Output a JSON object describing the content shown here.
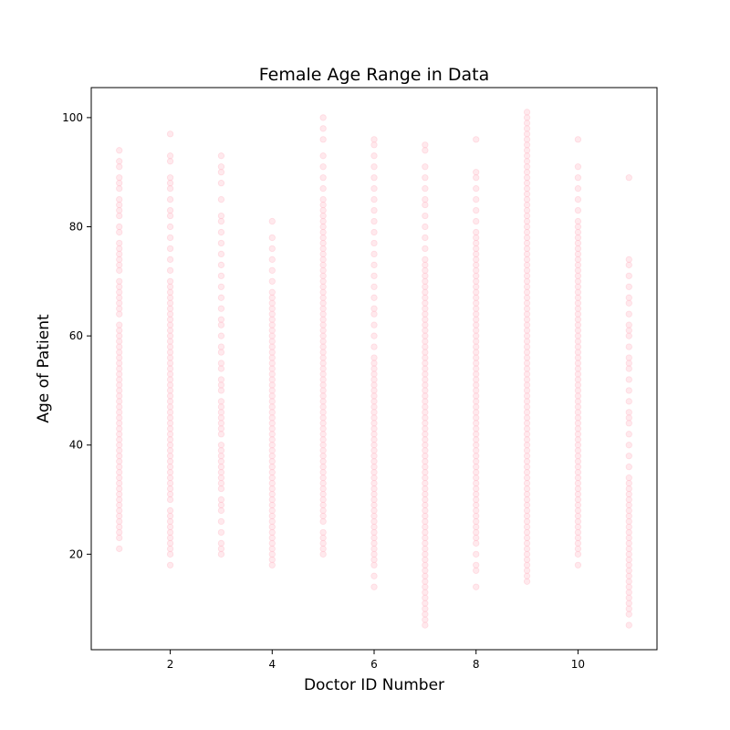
{
  "chart_data": {
    "type": "scatter",
    "title": "Female Age Range in Data",
    "xlabel": "Doctor ID Number",
    "ylabel": "Age of Patient",
    "xlim": [
      0.45,
      11.55
    ],
    "ylim": [
      2.5,
      105.5
    ],
    "xticks": [
      2,
      4,
      6,
      8,
      10
    ],
    "yticks": [
      20,
      40,
      60,
      80,
      100
    ],
    "grid": false,
    "legend": false,
    "marker_color": "#ffc0cb",
    "marker_opacity": 0.35,
    "series": [
      {
        "points_by_doctor": [
          {
            "x": 1,
            "ages": [
              21,
              23,
              24,
              25,
              26,
              27,
              28,
              29,
              30,
              31,
              32,
              33,
              34,
              35,
              36,
              37,
              38,
              39,
              40,
              41,
              42,
              43,
              44,
              45,
              46,
              47,
              48,
              49,
              50,
              51,
              52,
              53,
              54,
              55,
              56,
              57,
              58,
              59,
              60,
              61,
              62,
              64,
              65,
              66,
              67,
              68,
              69,
              70,
              72,
              73,
              74,
              75,
              76,
              77,
              79,
              80,
              82,
              83,
              84,
              85,
              87,
              88,
              89,
              91,
              92,
              94
            ]
          },
          {
            "x": 2,
            "ages": [
              18,
              20,
              21,
              22,
              23,
              24,
              25,
              26,
              27,
              28,
              30,
              31,
              32,
              33,
              34,
              35,
              36,
              37,
              38,
              39,
              40,
              41,
              42,
              43,
              44,
              45,
              46,
              47,
              48,
              49,
              50,
              51,
              52,
              53,
              54,
              55,
              56,
              57,
              58,
              59,
              60,
              61,
              62,
              63,
              64,
              65,
              66,
              67,
              68,
              69,
              70,
              72,
              74,
              76,
              78,
              80,
              82,
              83,
              85,
              87,
              88,
              89,
              92,
              93,
              97
            ]
          },
          {
            "x": 3,
            "ages": [
              20,
              21,
              22,
              24,
              26,
              28,
              29,
              30,
              32,
              33,
              34,
              35,
              36,
              37,
              38,
              39,
              40,
              42,
              43,
              44,
              45,
              46,
              47,
              48,
              50,
              51,
              52,
              54,
              55,
              57,
              58,
              60,
              62,
              63,
              65,
              67,
              69,
              71,
              73,
              75,
              77,
              79,
              81,
              82,
              85,
              88,
              90,
              91,
              93
            ]
          },
          {
            "x": 4,
            "ages": [
              18,
              19,
              20,
              21,
              22,
              23,
              24,
              25,
              26,
              27,
              28,
              29,
              30,
              31,
              32,
              33,
              34,
              35,
              36,
              37,
              38,
              39,
              40,
              41,
              42,
              43,
              44,
              45,
              46,
              47,
              48,
              49,
              50,
              51,
              52,
              53,
              54,
              55,
              56,
              57,
              58,
              59,
              60,
              61,
              62,
              63,
              64,
              65,
              66,
              67,
              68,
              70,
              72,
              74,
              76,
              78,
              81
            ]
          },
          {
            "x": 5,
            "ages": [
              20,
              21,
              22,
              23,
              24,
              26,
              27,
              28,
              29,
              30,
              31,
              32,
              33,
              34,
              35,
              36,
              37,
              38,
              39,
              40,
              41,
              42,
              43,
              44,
              45,
              46,
              47,
              48,
              49,
              50,
              51,
              52,
              53,
              54,
              55,
              56,
              57,
              58,
              59,
              60,
              61,
              62,
              63,
              64,
              65,
              66,
              67,
              68,
              69,
              70,
              71,
              72,
              73,
              74,
              75,
              76,
              77,
              78,
              79,
              80,
              81,
              82,
              83,
              84,
              85,
              87,
              89,
              91,
              93,
              96,
              98,
              100
            ]
          },
          {
            "x": 6,
            "ages": [
              14,
              16,
              18,
              19,
              20,
              21,
              22,
              23,
              24,
              25,
              26,
              27,
              28,
              29,
              30,
              31,
              32,
              33,
              34,
              35,
              36,
              37,
              38,
              39,
              40,
              41,
              42,
              43,
              44,
              45,
              46,
              47,
              48,
              49,
              50,
              51,
              52,
              53,
              54,
              55,
              56,
              58,
              60,
              62,
              64,
              65,
              67,
              69,
              71,
              73,
              75,
              77,
              79,
              81,
              83,
              85,
              87,
              89,
              91,
              93,
              95,
              96
            ]
          },
          {
            "x": 7,
            "ages": [
              7,
              8,
              9,
              10,
              11,
              12,
              13,
              14,
              15,
              16,
              17,
              18,
              19,
              20,
              21,
              22,
              23,
              24,
              25,
              26,
              27,
              28,
              29,
              30,
              31,
              32,
              33,
              34,
              35,
              36,
              37,
              38,
              39,
              40,
              41,
              42,
              43,
              44,
              45,
              46,
              47,
              48,
              49,
              50,
              51,
              52,
              53,
              54,
              55,
              56,
              57,
              58,
              59,
              60,
              61,
              62,
              63,
              64,
              65,
              66,
              67,
              68,
              69,
              70,
              71,
              72,
              73,
              74,
              76,
              78,
              80,
              82,
              84,
              85,
              87,
              89,
              91,
              94,
              95
            ]
          },
          {
            "x": 8,
            "ages": [
              14,
              17,
              18,
              20,
              22,
              23,
              24,
              25,
              26,
              27,
              28,
              29,
              30,
              31,
              32,
              33,
              34,
              35,
              36,
              37,
              38,
              39,
              40,
              41,
              42,
              43,
              44,
              45,
              46,
              47,
              48,
              49,
              50,
              51,
              52,
              53,
              54,
              55,
              56,
              57,
              58,
              59,
              60,
              61,
              62,
              63,
              64,
              65,
              66,
              67,
              68,
              69,
              70,
              71,
              72,
              73,
              74,
              75,
              76,
              77,
              78,
              79,
              81,
              83,
              85,
              87,
              89,
              90,
              96
            ]
          },
          {
            "x": 9,
            "ages": [
              15,
              16,
              17,
              18,
              19,
              20,
              21,
              22,
              23,
              24,
              25,
              26,
              27,
              28,
              29,
              30,
              31,
              32,
              33,
              34,
              35,
              36,
              37,
              38,
              39,
              40,
              41,
              42,
              43,
              44,
              45,
              46,
              47,
              48,
              49,
              50,
              51,
              52,
              53,
              54,
              55,
              56,
              57,
              58,
              59,
              60,
              61,
              62,
              63,
              64,
              65,
              66,
              67,
              68,
              69,
              70,
              71,
              72,
              73,
              74,
              75,
              76,
              77,
              78,
              79,
              80,
              81,
              82,
              83,
              84,
              85,
              86,
              87,
              88,
              89,
              90,
              91,
              92,
              93,
              94,
              95,
              96,
              97,
              98,
              99,
              100,
              101
            ]
          },
          {
            "x": 10,
            "ages": [
              18,
              20,
              21,
              22,
              23,
              24,
              25,
              26,
              27,
              28,
              29,
              30,
              31,
              32,
              33,
              34,
              35,
              36,
              37,
              38,
              39,
              40,
              41,
              42,
              43,
              44,
              45,
              46,
              47,
              48,
              49,
              50,
              51,
              52,
              53,
              54,
              55,
              56,
              57,
              58,
              59,
              60,
              61,
              62,
              63,
              64,
              65,
              66,
              67,
              68,
              69,
              70,
              71,
              72,
              73,
              74,
              75,
              76,
              77,
              78,
              79,
              80,
              81,
              83,
              85,
              87,
              89,
              91,
              96
            ]
          },
          {
            "x": 11,
            "ages": [
              7,
              9,
              10,
              11,
              12,
              13,
              14,
              15,
              16,
              17,
              18,
              19,
              20,
              21,
              22,
              23,
              24,
              25,
              26,
              27,
              28,
              29,
              30,
              31,
              32,
              33,
              34,
              36,
              38,
              40,
              42,
              44,
              45,
              46,
              48,
              50,
              52,
              54,
              55,
              56,
              58,
              60,
              61,
              62,
              64,
              66,
              67,
              69,
              71,
              73,
              74,
              89
            ]
          }
        ]
      }
    ]
  }
}
